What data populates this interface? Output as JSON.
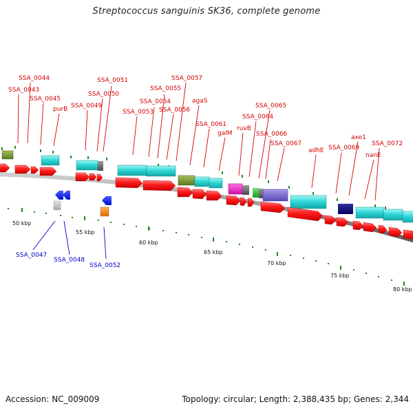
{
  "title": "Streptococcus sanguinis SK36, complete genome",
  "footer": {
    "accession": "Accession: NC_009009",
    "summary": "Topology: circular; Length: 2,388,435 bp; Genes: 2,344"
  },
  "colors": {
    "label_top": "#d40000",
    "label_bottom": "#0000c8",
    "backbone": "#999999",
    "tick": "#1c8a1c",
    "rna_gene": "#ff1a1a",
    "cds": "#2ad4d4"
  },
  "top_labels": [
    {
      "text": "SSA_0043"
    },
    {
      "text": "SSA_0044"
    },
    {
      "text": "SSA_0045"
    },
    {
      "text": "purB"
    },
    {
      "text": "SSA_0049"
    },
    {
      "text": "SSA_0050"
    },
    {
      "text": "SSA_0051"
    },
    {
      "text": "SSA_0053"
    },
    {
      "text": "SSA_0054"
    },
    {
      "text": "SSA_0055"
    },
    {
      "text": "SSA_0056"
    },
    {
      "text": "SSA_0057"
    },
    {
      "text": "agaS"
    },
    {
      "text": "SSA_0061"
    },
    {
      "text": "galM"
    },
    {
      "text": "ruvB"
    },
    {
      "text": "SSA_0064"
    },
    {
      "text": "SSA_0065"
    },
    {
      "text": "SSA_0066"
    },
    {
      "text": "SSA_0067"
    },
    {
      "text": "adhE"
    },
    {
      "text": "SSA_0069"
    },
    {
      "text": "axe1"
    },
    {
      "text": "nanE"
    },
    {
      "text": "SSA_0072"
    }
  ],
  "bottom_labels": [
    {
      "text": "SSA_0047"
    },
    {
      "text": "SSA_0048"
    },
    {
      "text": "SSA_0052"
    }
  ],
  "scale_labels": [
    "50 kbp",
    "55 kbp",
    "60 kbp",
    "65 kbp",
    "70 kbp",
    "75 kbp",
    "80 kbp"
  ]
}
